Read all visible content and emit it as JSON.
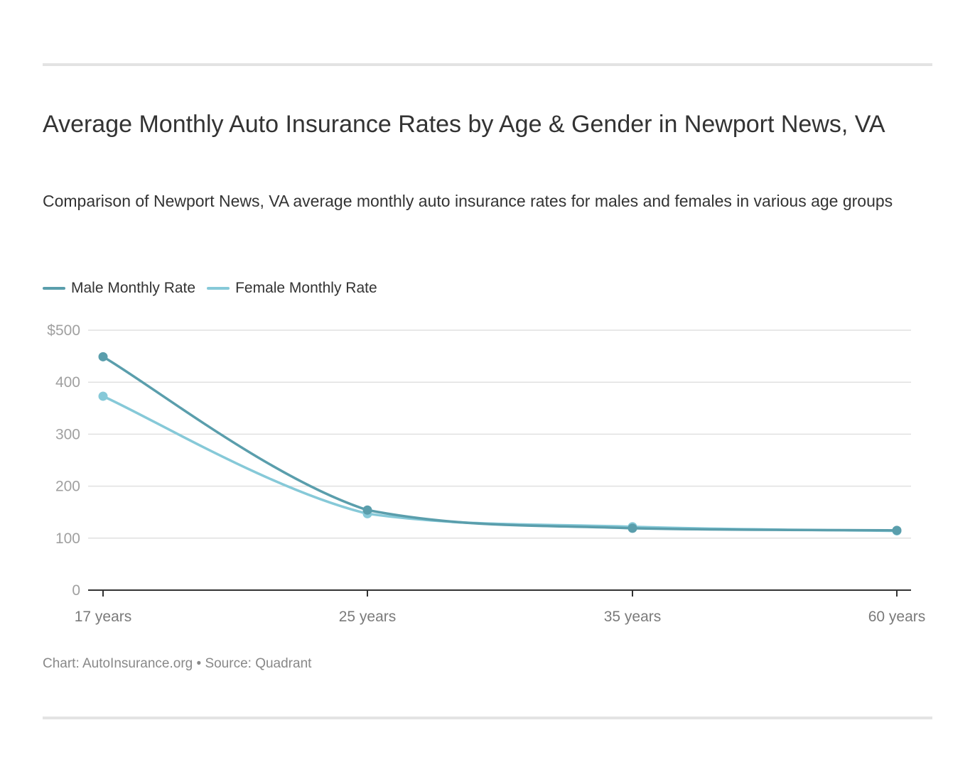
{
  "chart_data": {
    "type": "line",
    "title": "Average Monthly Auto Insurance Rates by Age & Gender in Newport News, VA",
    "subtitle": "Comparison of Newport News, VA average monthly auto insurance rates for males and females in various age groups",
    "categories": [
      "17 years",
      "25 years",
      "35 years",
      "60 years"
    ],
    "series": [
      {
        "name": "Male Monthly Rate",
        "color": "#5a9eac",
        "values": [
          449,
          154,
          119,
          115
        ]
      },
      {
        "name": "Female Monthly Rate",
        "color": "#86c9d8",
        "values": [
          373,
          147,
          122,
          114
        ]
      }
    ],
    "ylim": [
      0,
      500
    ],
    "yticks": [
      0,
      100,
      200,
      300,
      400,
      500
    ],
    "ytick_labels": [
      "0",
      "100",
      "200",
      "300",
      "400",
      "$500"
    ],
    "xlabel": "",
    "ylabel": "",
    "grid": true,
    "legend_position": "top-left",
    "footer": "Chart: AutoInsurance.org • Source: Quadrant"
  }
}
